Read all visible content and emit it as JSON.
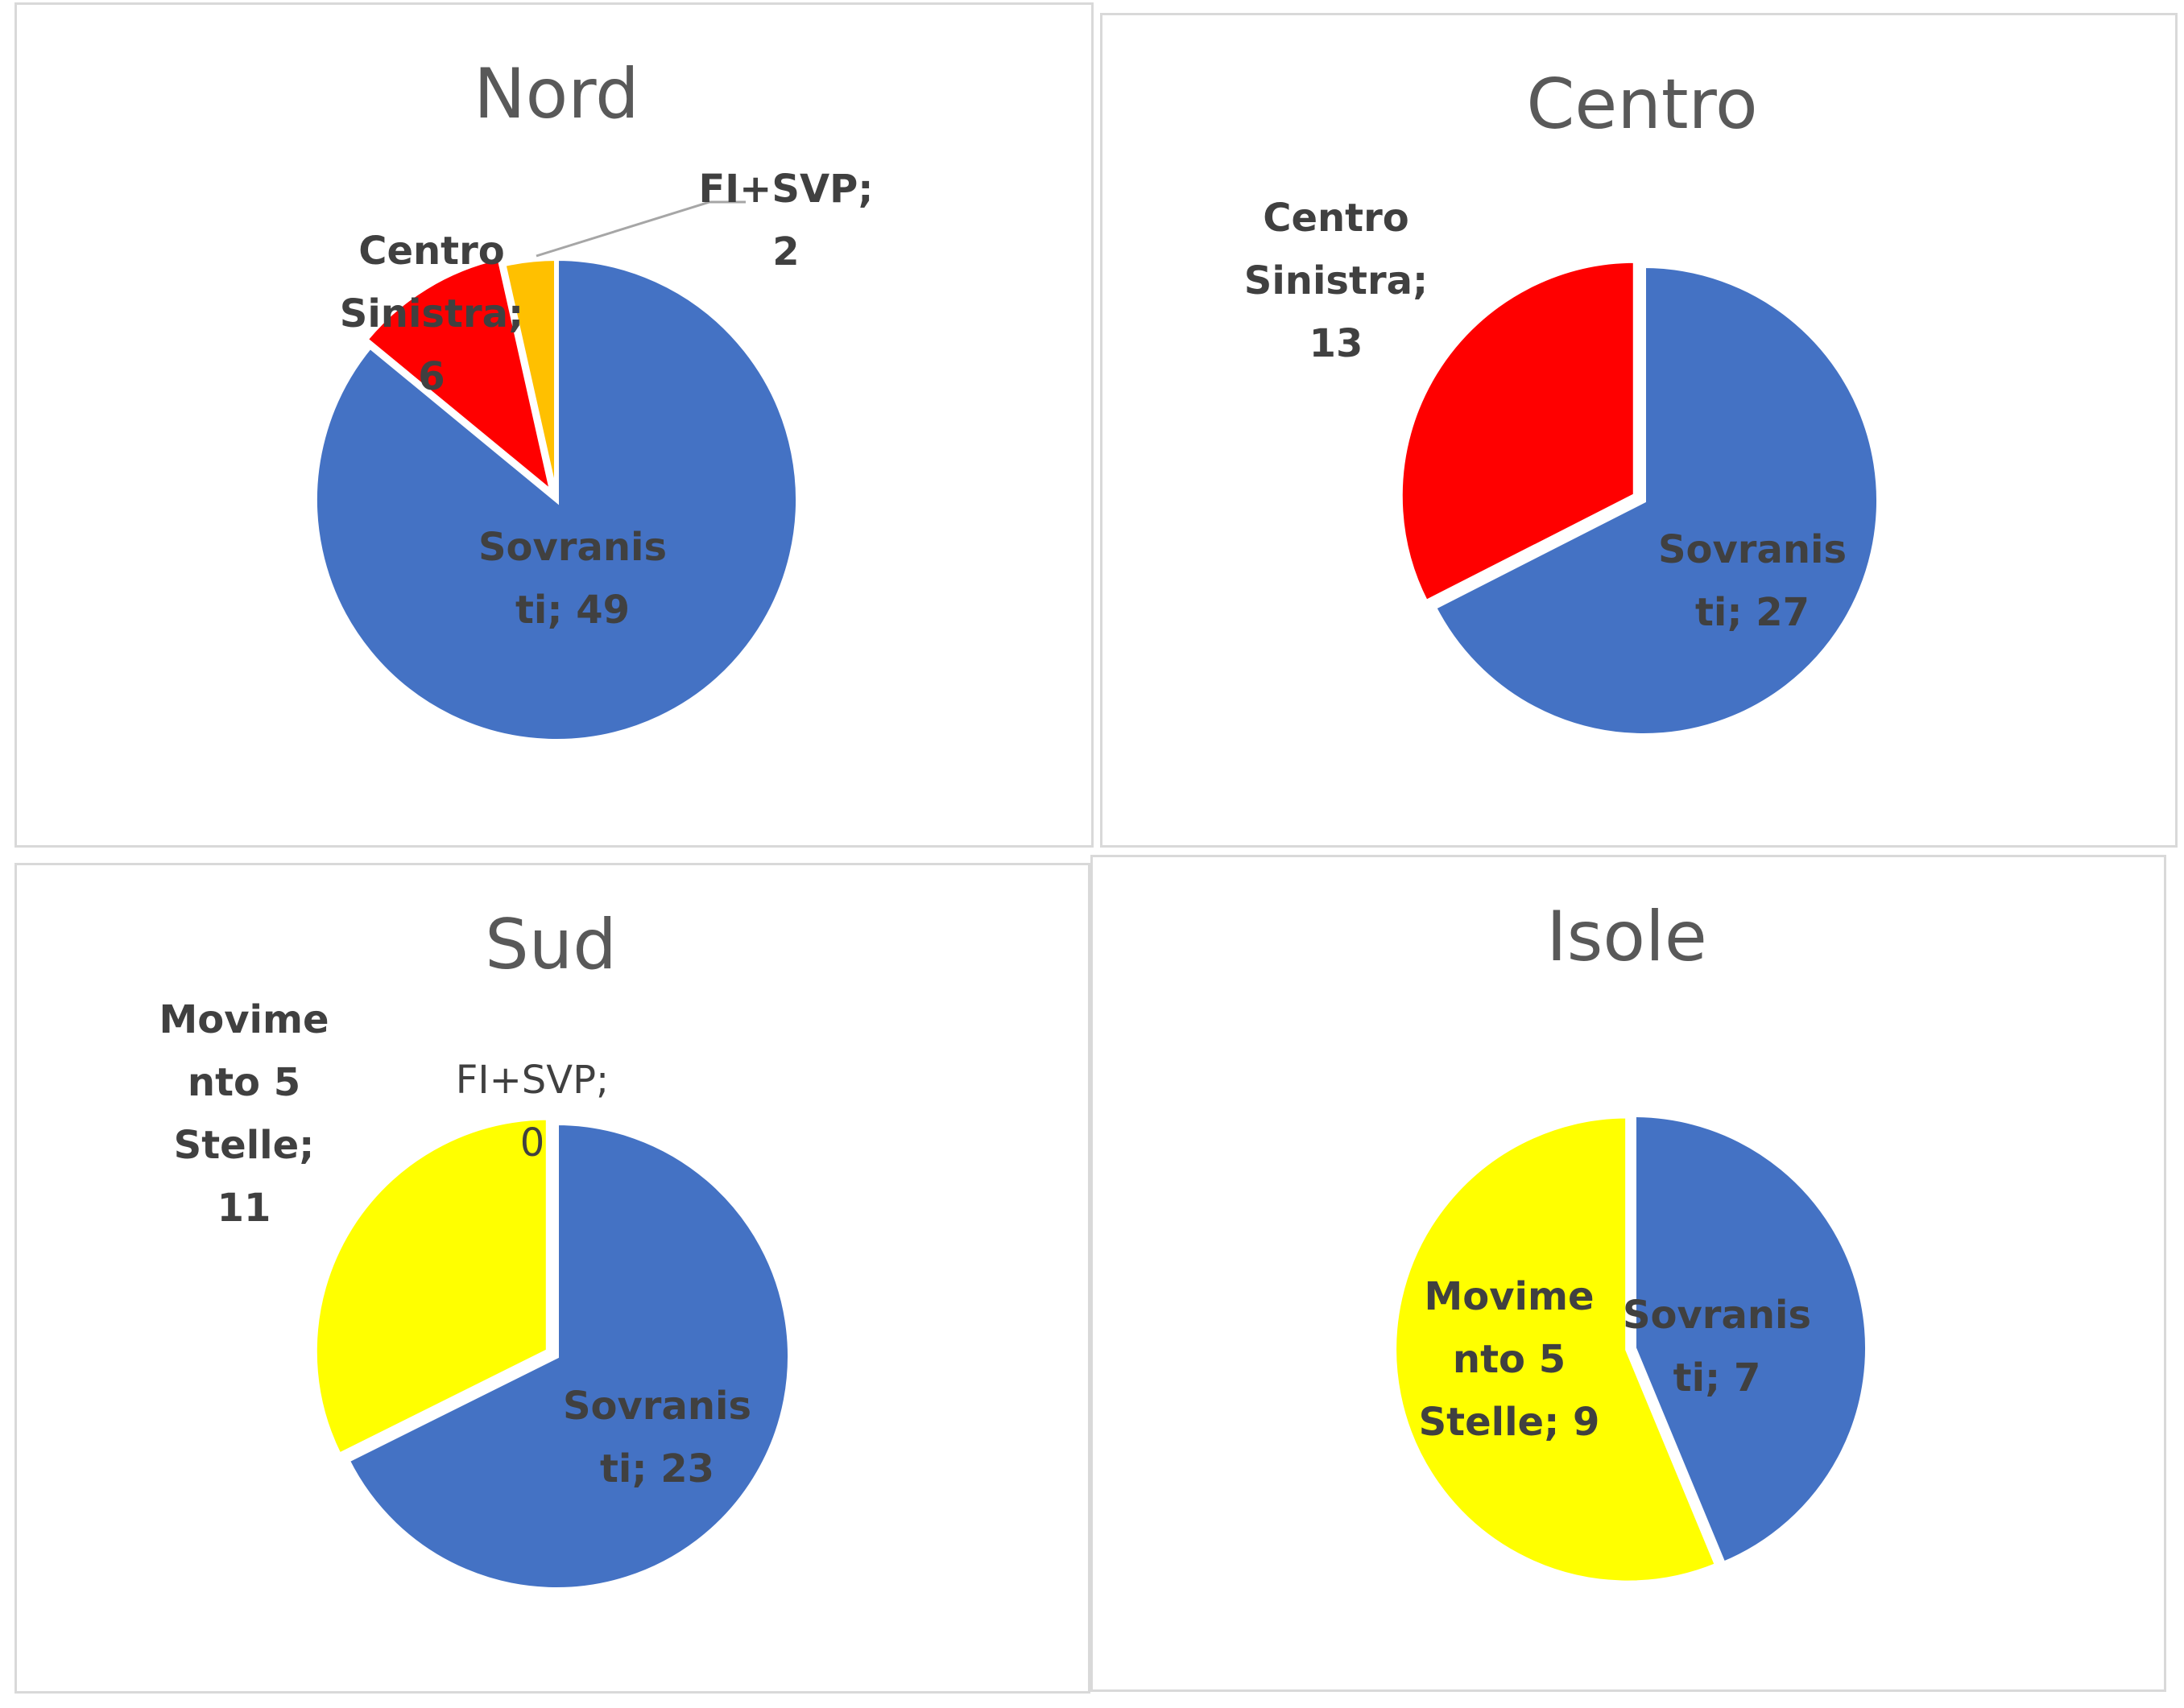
{
  "colors": {
    "Sovranisti": "#4472C4",
    "Centro Sinistra": "#FF0000",
    "FI+SVP": "#FFC000",
    "Movimento 5 Stelle": "#FFFF00"
  },
  "chart_data": [
    {
      "type": "pie",
      "title": "Nord",
      "slices": [
        {
          "name": "Sovranisti",
          "value": 49
        },
        {
          "name": "Centro Sinistra",
          "value": 6
        },
        {
          "name": "FI+SVP",
          "value": 2
        }
      ],
      "labels": [
        {
          "lines": [
            "Sovranis",
            "ti; 49"
          ]
        },
        {
          "lines": [
            "Centro",
            "Sinistra;",
            "6"
          ]
        },
        {
          "lines": [
            "FI+SVP;",
            "2"
          ]
        }
      ]
    },
    {
      "type": "pie",
      "title": "Centro",
      "slices": [
        {
          "name": "Sovranisti",
          "value": 27
        },
        {
          "name": "Centro Sinistra",
          "value": 13
        }
      ],
      "labels": [
        {
          "lines": [
            "Sovranis",
            "ti; 27"
          ]
        },
        {
          "lines": [
            "Centro",
            "Sinistra;",
            "13"
          ]
        }
      ]
    },
    {
      "type": "pie",
      "title": "Sud",
      "slices": [
        {
          "name": "Sovranisti",
          "value": 23
        },
        {
          "name": "Movimento 5 Stelle",
          "value": 11
        },
        {
          "name": "FI+SVP",
          "value": 0
        }
      ],
      "labels": [
        {
          "lines": [
            "Sovranis",
            "ti; 23"
          ]
        },
        {
          "lines": [
            "Movime",
            "nto 5",
            "Stelle;",
            "11"
          ]
        },
        {
          "lines": [
            "FI+SVP;",
            "0"
          ]
        }
      ]
    },
    {
      "type": "pie",
      "title": "Isole",
      "slices": [
        {
          "name": "Sovranisti",
          "value": 7
        },
        {
          "name": "Movimento 5 Stelle",
          "value": 9
        }
      ],
      "labels": [
        {
          "lines": [
            "Sovranis",
            "ti; 7"
          ]
        },
        {
          "lines": [
            "Movime",
            "nto 5",
            "Stelle; 9"
          ]
        }
      ]
    }
  ]
}
